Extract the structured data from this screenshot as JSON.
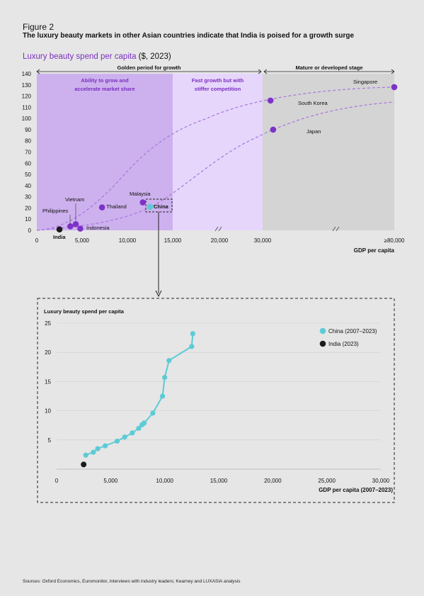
{
  "figure_label": "Figure 2",
  "figure_title": "The luxury beauty markets in other Asian countries indicate that India is poised for a growth surge",
  "subtitle": "Luxury beauty spend per capita",
  "subtitle_unit": "($, 2023)",
  "source": "Sources: Oxford Economics, Euromonitor, interviews with industry leaders; Kearney and LUXASIA analysis",
  "colors": {
    "zone_dark": "#cdb1ee",
    "zone_light": "#e6d6fb",
    "zone_grey": "#d4d4d4",
    "accent_purple": "#7b2fc0",
    "point_purple": "#7d32c8",
    "china_teal": "#5ccbd6",
    "india_black": "#1a1a1a",
    "curve": "#a874dc"
  },
  "chart_data": [
    {
      "type": "scatter",
      "title": "Luxury beauty spend per capita ($, 2023)",
      "xlabel": "GDP per capita",
      "ylabel": "",
      "x_ticks": [
        "0",
        "5,000",
        "10,000",
        "15,000",
        "20,000",
        "30,000",
        "≥80,000"
      ],
      "y_ticks": [
        0,
        10,
        20,
        30,
        40,
        50,
        60,
        70,
        80,
        90,
        100,
        110,
        120,
        130,
        140
      ],
      "ylim": [
        0,
        140
      ],
      "axis_breaks": "between 15,000 and 20,000; between 20,000 and 30,000; between 30,000 and ≥80,000",
      "zones": [
        {
          "label": "Ability to grow and accelerate market share",
          "from": 0,
          "to": 15000
        },
        {
          "label": "Fast growth but with stiffer competition",
          "from": 15000,
          "to": 30000
        },
        {
          "label": "",
          "from": 30000,
          "to": 80000
        }
      ],
      "brackets": [
        {
          "label": "Golden period for growth",
          "from": 0,
          "to": 30000
        },
        {
          "label": "Mature or developed stage",
          "from": 30000,
          "to": 80000
        }
      ],
      "points": [
        {
          "name": "India",
          "x": 2500,
          "y": 0.8,
          "color": "black"
        },
        {
          "name": "Philippines",
          "x": 3700,
          "y": 3.5,
          "color": "purple"
        },
        {
          "name": "Vietnam",
          "x": 4300,
          "y": 5.5,
          "color": "purple"
        },
        {
          "name": "Indonesia",
          "x": 4800,
          "y": 1.5,
          "color": "purple"
        },
        {
          "name": "Thailand",
          "x": 7200,
          "y": 20.5,
          "color": "purple"
        },
        {
          "name": "Malaysia",
          "x": 11700,
          "y": 25,
          "color": "purple"
        },
        {
          "name": "China",
          "x": 12500,
          "y": 21,
          "color": "teal"
        },
        {
          "name": "South Korea",
          "x": 33000,
          "y": 116,
          "color": "purple"
        },
        {
          "name": "Japan",
          "x": 34000,
          "y": 90,
          "color": "purple"
        },
        {
          "name": "Singapore",
          "x": 80000,
          "y": 128,
          "color": "purple"
        }
      ]
    },
    {
      "type": "line",
      "title": "Luxury beauty spend per capita",
      "xlabel": "GDP per capita (2007–2023)",
      "ylabel": "",
      "x_ticks": [
        0,
        5000,
        10000,
        15000,
        20000,
        25000,
        30000
      ],
      "y_ticks": [
        5,
        10,
        15,
        20,
        25
      ],
      "xlim": [
        0,
        30000
      ],
      "ylim": [
        0,
        25
      ],
      "legend": [
        "China (2007–2023)",
        "India (2023)"
      ],
      "legend_position": "top-right",
      "series": [
        {
          "name": "China (2007–2023)",
          "x": [
            2700,
            3400,
            3800,
            4500,
            5600,
            6300,
            7000,
            7600,
            7900,
            8100,
            8900,
            9800,
            10000,
            10400,
            12500,
            12600
          ],
          "y": [
            2.4,
            2.9,
            3.5,
            4.0,
            4.8,
            5.5,
            6.2,
            7.0,
            7.6,
            7.9,
            9.6,
            12.5,
            15.7,
            18.6,
            21.0,
            23.2
          ]
        },
        {
          "name": "India (2023)",
          "x": [
            2500
          ],
          "y": [
            0.8
          ]
        }
      ]
    }
  ]
}
